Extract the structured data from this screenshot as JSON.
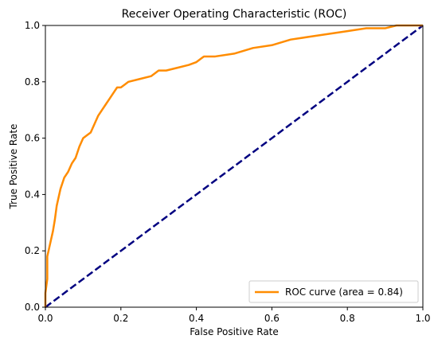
{
  "chart_data": {
    "type": "line",
    "title": "Receiver Operating Characteristic (ROC)",
    "xlabel": "False Positive Rate",
    "ylabel": "True Positive Rate",
    "xlim": [
      0.0,
      1.0
    ],
    "ylim": [
      0.0,
      1.0
    ],
    "xticks": [
      "0.0",
      "0.2",
      "0.4",
      "0.6",
      "0.8",
      "1.0"
    ],
    "yticks": [
      "0.0",
      "0.2",
      "0.4",
      "0.6",
      "0.8",
      "1.0"
    ],
    "grid": false,
    "legend_position": "lower-right",
    "series": [
      {
        "name": "ROC curve (area = 0.84)",
        "color": "#ff8c00",
        "style": "solid",
        "x": [
          0.0,
          0.0,
          0.005,
          0.005,
          0.01,
          0.015,
          0.02,
          0.025,
          0.03,
          0.035,
          0.04,
          0.045,
          0.05,
          0.06,
          0.07,
          0.08,
          0.09,
          0.1,
          0.11,
          0.12,
          0.13,
          0.14,
          0.15,
          0.16,
          0.17,
          0.18,
          0.19,
          0.2,
          0.21,
          0.22,
          0.25,
          0.28,
          0.3,
          0.32,
          0.35,
          0.38,
          0.4,
          0.42,
          0.45,
          0.5,
          0.55,
          0.6,
          0.65,
          0.7,
          0.75,
          0.8,
          0.85,
          0.9,
          0.93,
          0.95,
          1.0
        ],
        "y": [
          0.0,
          0.05,
          0.1,
          0.18,
          0.21,
          0.24,
          0.27,
          0.31,
          0.36,
          0.39,
          0.42,
          0.44,
          0.46,
          0.48,
          0.51,
          0.53,
          0.57,
          0.6,
          0.61,
          0.62,
          0.65,
          0.68,
          0.7,
          0.72,
          0.74,
          0.76,
          0.78,
          0.78,
          0.79,
          0.8,
          0.81,
          0.82,
          0.84,
          0.84,
          0.85,
          0.86,
          0.87,
          0.89,
          0.89,
          0.9,
          0.92,
          0.93,
          0.95,
          0.96,
          0.97,
          0.98,
          0.99,
          0.99,
          1.0,
          1.0,
          1.0
        ]
      },
      {
        "name": "",
        "color": "#000080",
        "style": "dashed",
        "x": [
          0.0,
          1.0
        ],
        "y": [
          0.0,
          1.0
        ]
      }
    ]
  }
}
